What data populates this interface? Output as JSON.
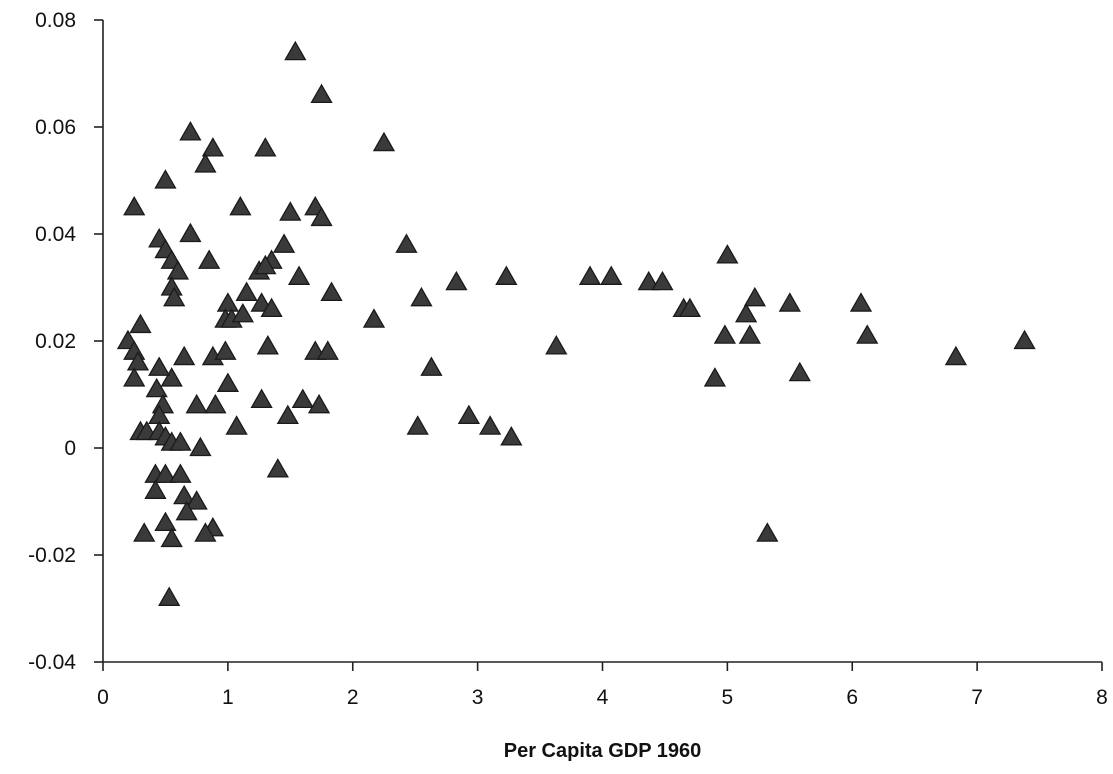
{
  "chart_data": {
    "type": "scatter",
    "title": "",
    "xlabel": "Per Capita GDP 1960",
    "ylabel": "",
    "xlim": [
      0,
      8
    ],
    "ylim": [
      -0.04,
      0.08
    ],
    "x_ticks": [
      0,
      1,
      2,
      3,
      4,
      5,
      6,
      7,
      8
    ],
    "x_tick_labels": [
      "0",
      "1",
      "2",
      "3",
      "4",
      "5",
      "6",
      "7",
      "8"
    ],
    "y_ticks": [
      -0.04,
      -0.02,
      0,
      0.02,
      0.04,
      0.06,
      0.08
    ],
    "y_tick_labels": [
      "-0.04",
      "-0.02",
      "0",
      "0.02",
      "0.04",
      "0.06",
      "0.08"
    ],
    "grid": false,
    "legend": "none",
    "marker": "triangle",
    "marker_color": "#3a3a3a",
    "series": [
      {
        "points": [
          [
            1.54,
            0.074
          ],
          [
            1.75,
            0.066
          ],
          [
            0.7,
            0.059
          ],
          [
            0.88,
            0.056
          ],
          [
            1.3,
            0.056
          ],
          [
            2.25,
            0.057
          ],
          [
            0.82,
            0.053
          ],
          [
            0.5,
            0.05
          ],
          [
            0.25,
            0.045
          ],
          [
            1.1,
            0.045
          ],
          [
            1.5,
            0.044
          ],
          [
            1.7,
            0.045
          ],
          [
            1.75,
            0.043
          ],
          [
            0.7,
            0.04
          ],
          [
            0.45,
            0.039
          ],
          [
            0.5,
            0.037
          ],
          [
            1.45,
            0.038
          ],
          [
            2.43,
            0.038
          ],
          [
            0.55,
            0.035
          ],
          [
            0.85,
            0.035
          ],
          [
            1.35,
            0.035
          ],
          [
            0.6,
            0.033
          ],
          [
            1.25,
            0.033
          ],
          [
            1.3,
            0.034
          ],
          [
            1.57,
            0.032
          ],
          [
            3.23,
            0.032
          ],
          [
            3.9,
            0.032
          ],
          [
            4.07,
            0.032
          ],
          [
            4.37,
            0.031
          ],
          [
            4.48,
            0.031
          ],
          [
            5.0,
            0.036
          ],
          [
            0.55,
            0.03
          ],
          [
            0.57,
            0.028
          ],
          [
            1.83,
            0.029
          ],
          [
            2.83,
            0.031
          ],
          [
            1.15,
            0.029
          ],
          [
            1.27,
            0.027
          ],
          [
            1.35,
            0.026
          ],
          [
            1.0,
            0.027
          ],
          [
            2.55,
            0.028
          ],
          [
            5.22,
            0.028
          ],
          [
            5.5,
            0.027
          ],
          [
            6.07,
            0.027
          ],
          [
            4.65,
            0.026
          ],
          [
            4.7,
            0.026
          ],
          [
            5.15,
            0.025
          ],
          [
            0.2,
            0.02
          ],
          [
            0.3,
            0.023
          ],
          [
            0.98,
            0.024
          ],
          [
            1.03,
            0.024
          ],
          [
            1.12,
            0.025
          ],
          [
            2.17,
            0.024
          ],
          [
            0.25,
            0.018
          ],
          [
            0.28,
            0.016
          ],
          [
            0.25,
            0.013
          ],
          [
            0.43,
            0.011
          ],
          [
            0.55,
            0.013
          ],
          [
            0.65,
            0.017
          ],
          [
            0.88,
            0.017
          ],
          [
            0.98,
            0.018
          ],
          [
            1.32,
            0.019
          ],
          [
            1.7,
            0.018
          ],
          [
            1.8,
            0.018
          ],
          [
            3.63,
            0.019
          ],
          [
            4.98,
            0.021
          ],
          [
            5.18,
            0.021
          ],
          [
            6.12,
            0.021
          ],
          [
            7.38,
            0.02
          ],
          [
            6.83,
            0.017
          ],
          [
            5.58,
            0.014
          ],
          [
            2.63,
            0.015
          ],
          [
            4.9,
            0.013
          ],
          [
            0.45,
            0.015
          ],
          [
            0.48,
            0.008
          ],
          [
            0.45,
            0.006
          ],
          [
            0.75,
            0.008
          ],
          [
            0.9,
            0.008
          ],
          [
            1.0,
            0.012
          ],
          [
            1.27,
            0.009
          ],
          [
            1.6,
            0.009
          ],
          [
            1.73,
            0.008
          ],
          [
            1.48,
            0.006
          ],
          [
            1.07,
            0.004
          ],
          [
            2.52,
            0.004
          ],
          [
            2.93,
            0.006
          ],
          [
            3.1,
            0.004
          ],
          [
            3.27,
            0.002
          ],
          [
            0.3,
            0.003
          ],
          [
            0.35,
            0.003
          ],
          [
            0.45,
            0.003
          ],
          [
            0.5,
            0.002
          ],
          [
            0.55,
            0.001
          ],
          [
            0.62,
            0.001
          ],
          [
            0.78,
            0.0
          ],
          [
            0.42,
            -0.005
          ],
          [
            0.5,
            -0.005
          ],
          [
            0.62,
            -0.005
          ],
          [
            0.42,
            -0.008
          ],
          [
            0.65,
            -0.009
          ],
          [
            0.75,
            -0.01
          ],
          [
            0.67,
            -0.012
          ],
          [
            1.4,
            -0.004
          ],
          [
            0.5,
            -0.014
          ],
          [
            0.88,
            -0.015
          ],
          [
            0.33,
            -0.016
          ],
          [
            0.55,
            -0.017
          ],
          [
            0.82,
            -0.016
          ],
          [
            5.32,
            -0.016
          ],
          [
            0.53,
            -0.028
          ]
        ]
      }
    ]
  }
}
